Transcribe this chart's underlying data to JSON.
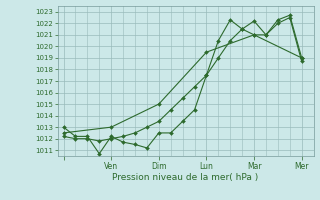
{
  "xlabel": "Pression niveau de la mer( hPa )",
  "ylim": [
    1010.5,
    1023.5
  ],
  "yticks": [
    1011,
    1012,
    1013,
    1014,
    1015,
    1016,
    1017,
    1018,
    1019,
    1020,
    1021,
    1022,
    1023
  ],
  "background_color": "#cce8e8",
  "grid_color": "#99bbbb",
  "line_color": "#2d6a2d",
  "series1_x": [
    0,
    1,
    2,
    3,
    4,
    5,
    6,
    7,
    8,
    9,
    10,
    11,
    12,
    13,
    14,
    15,
    16,
    17,
    18,
    19,
    20
  ],
  "series1_y": [
    1013.0,
    1012.2,
    1012.2,
    1010.7,
    1012.2,
    1011.7,
    1011.5,
    1011.2,
    1012.5,
    1012.5,
    1013.5,
    1014.5,
    1017.5,
    1020.5,
    1022.3,
    1021.5,
    1022.2,
    1021.0,
    1022.3,
    1022.7,
    1019.0
  ],
  "series2_x": [
    0,
    1,
    2,
    3,
    4,
    5,
    6,
    7,
    8,
    9,
    10,
    11,
    12,
    13,
    14,
    15,
    16,
    17,
    18,
    19,
    20
  ],
  "series2_y": [
    1012.2,
    1012.0,
    1012.0,
    1011.8,
    1012.0,
    1012.2,
    1012.5,
    1013.0,
    1013.5,
    1014.5,
    1015.5,
    1016.5,
    1017.5,
    1019.0,
    1020.5,
    1021.5,
    1021.0,
    1021.0,
    1022.0,
    1022.5,
    1018.7
  ],
  "series3_x": [
    0,
    4,
    8,
    12,
    16,
    20
  ],
  "series3_y": [
    1012.5,
    1013.0,
    1015.0,
    1019.5,
    1021.0,
    1019.0
  ],
  "xtick_major_positions": [
    0,
    4,
    8,
    12,
    16,
    20
  ],
  "xtick_major_labels": [
    "",
    "Ven",
    "Dim",
    "Lun",
    "Mar",
    "Mer"
  ],
  "xlim": [
    -0.5,
    21
  ],
  "xlabel_fontsize": 6.5,
  "ytick_fontsize": 5,
  "xtick_fontsize": 5.5
}
